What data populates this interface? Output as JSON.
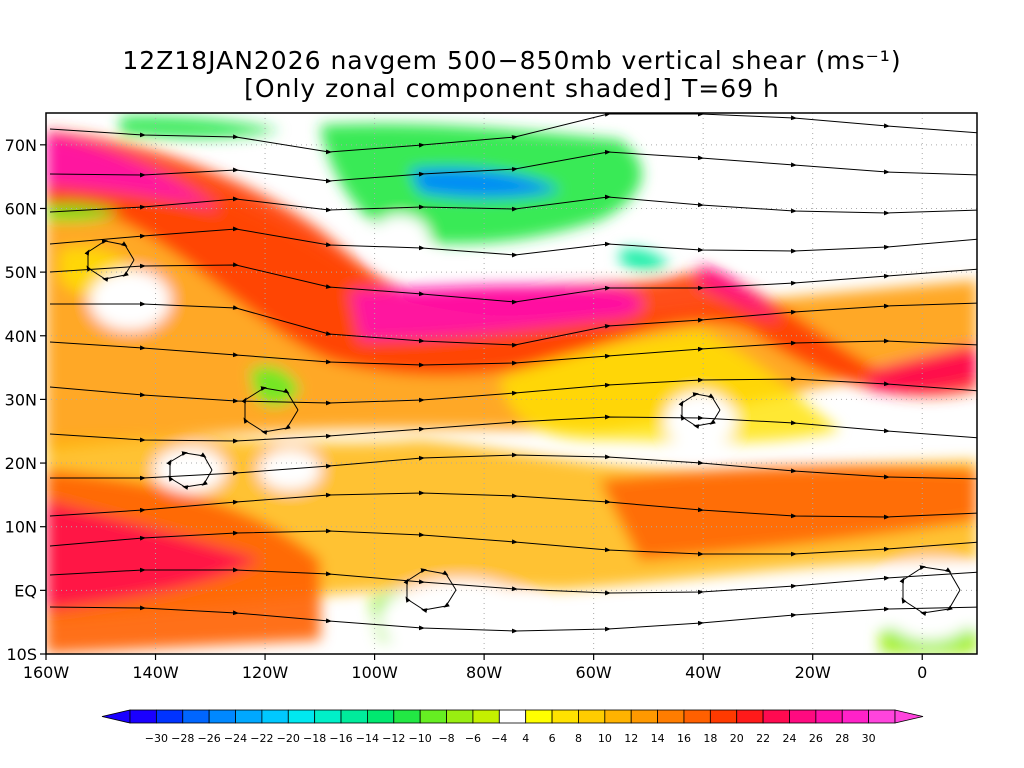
{
  "title": {
    "line1": "12Z18JAN2026 navgem 500−850mb vertical shear (ms⁻¹)",
    "line2": "[Only zonal component shaded] T=69 h"
  },
  "map": {
    "lon_labels": [
      "160W",
      "140W",
      "120W",
      "100W",
      "80W",
      "60W",
      "40W",
      "20W",
      "0"
    ],
    "lat_labels": [
      "70N",
      "60N",
      "50N",
      "40N",
      "30N",
      "20N",
      "10N",
      "EQ",
      "10S"
    ],
    "lon_range": [
      -160,
      10
    ],
    "lat_range": [
      -10,
      75
    ],
    "grid": true
  },
  "colorbar": {
    "labels": [
      "−30",
      "−28",
      "−26",
      "−24",
      "−22",
      "−20",
      "−18",
      "−16",
      "−14",
      "−12",
      "−10",
      "−8",
      "−6",
      "−4",
      "4",
      "6",
      "8",
      "10",
      "12",
      "14",
      "16",
      "18",
      "20",
      "22",
      "24",
      "26",
      "28",
      "30"
    ],
    "colors": [
      "#1a00ff",
      "#0033ff",
      "#0066ff",
      "#0088ff",
      "#00a8ff",
      "#00c8ff",
      "#00e8f0",
      "#00f0c8",
      "#00ec9c",
      "#00e870",
      "#22e844",
      "#66ee22",
      "#99ee11",
      "#c4f000",
      "#ffffff",
      "#ffff00",
      "#ffe200",
      "#ffcc00",
      "#ffb300",
      "#ff9900",
      "#ff7d00",
      "#ff6000",
      "#ff3a00",
      "#ff1a1a",
      "#ff0a50",
      "#ff0a80",
      "#ff10a8",
      "#ff22c8",
      "#ff44dd"
    ]
  }
}
